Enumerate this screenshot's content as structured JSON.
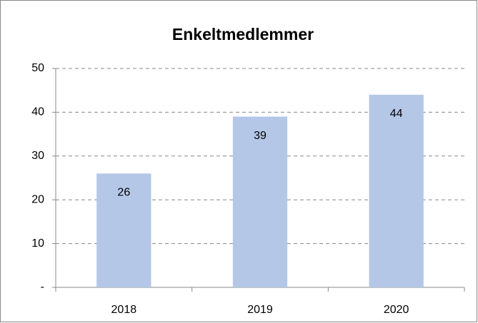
{
  "chart_data": {
    "type": "bar",
    "title": "Enkeltmedlemmer",
    "categories": [
      "2018",
      "2019",
      "2020"
    ],
    "values": [
      26,
      39,
      44
    ],
    "color": "#b4c7e7",
    "ylim": [
      0,
      50
    ],
    "yticks": [
      {
        "value": 0,
        "label": "-"
      },
      10,
      20,
      30,
      40,
      50
    ],
    "grid": true
  }
}
